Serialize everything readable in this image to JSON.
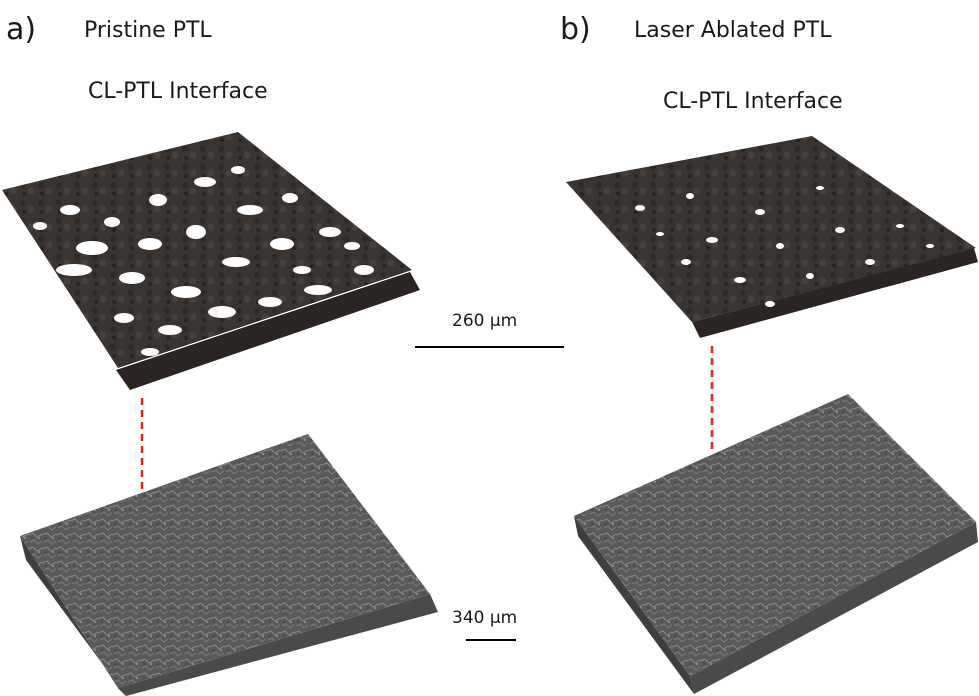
{
  "panels": [
    {
      "letter": "a)",
      "title": "Pristine PTL",
      "interface_label": "CL-PTL Interface"
    },
    {
      "letter": "b)",
      "title": "Laser Ablated PTL",
      "interface_label": "CL-PTL Interface"
    }
  ],
  "scale_bars": {
    "top": "260 μm",
    "bottom": "340 μm"
  },
  "colors": {
    "interface_surface": "#38322f",
    "bulk_block": "#5a5a5a",
    "connector_line": "#e0271f",
    "scale_bar": "#000000"
  }
}
